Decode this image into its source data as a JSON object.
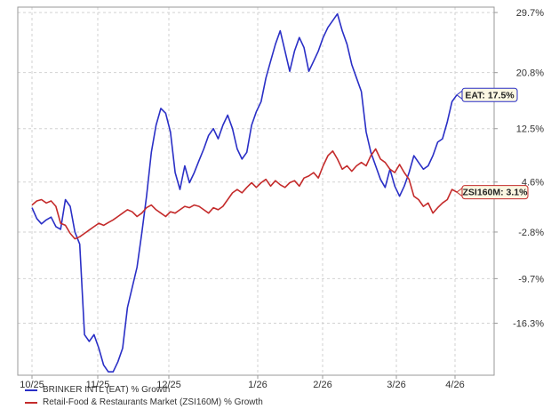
{
  "chart_data": {
    "type": "line",
    "x_ticks": [
      "10/25",
      "11/25",
      "12/25",
      "1/26",
      "2/26",
      "3/26",
      "4/26"
    ],
    "y_ticks": [
      "29.7%",
      "20.8%",
      "12.5%",
      "4.6%",
      "-2.8%",
      "-9.7%",
      "-16.3%"
    ],
    "y_tick_values": [
      29.7,
      20.8,
      12.5,
      4.6,
      -2.8,
      -9.7,
      -16.3
    ],
    "ylim": [
      -24,
      30.5
    ],
    "grid": true,
    "legend_position": "bottom-left",
    "series": [
      {
        "name": "BRINKER INTL (EAT) % Growth",
        "legend_label": "BRINKER INTL (EAT) % Growth",
        "color": "#2a2fc6",
        "end_label": "EAT: 17.5%",
        "points": [
          [
            0,
            0.8
          ],
          [
            1,
            -0.8
          ],
          [
            2,
            -1.6
          ],
          [
            3,
            -1.0
          ],
          [
            4,
            -0.6
          ],
          [
            5,
            -2.0
          ],
          [
            6,
            -2.4
          ],
          [
            7,
            2.0
          ],
          [
            8,
            1.0
          ],
          [
            9,
            -2.8
          ],
          [
            10,
            -4.6
          ],
          [
            11,
            -18.0
          ],
          [
            12,
            -19.0
          ],
          [
            13,
            -18.0
          ],
          [
            14,
            -20.0
          ],
          [
            15,
            -22.5
          ],
          [
            16,
            -23.5
          ],
          [
            17,
            -23.5
          ],
          [
            18,
            -22.0
          ],
          [
            19,
            -20.0
          ],
          [
            20,
            -14.0
          ],
          [
            21,
            -11.0
          ],
          [
            22,
            -8.0
          ],
          [
            23,
            -3.0
          ],
          [
            24,
            2.5
          ],
          [
            25,
            9.0
          ],
          [
            26,
            13.0
          ],
          [
            27,
            15.5
          ],
          [
            28,
            14.8
          ],
          [
            29,
            12.0
          ],
          [
            30,
            6.0
          ],
          [
            31,
            3.5
          ],
          [
            32,
            7.0
          ],
          [
            33,
            4.5
          ],
          [
            34,
            6.0
          ],
          [
            35,
            7.8
          ],
          [
            36,
            9.5
          ],
          [
            37,
            11.5
          ],
          [
            38,
            12.5
          ],
          [
            39,
            11.0
          ],
          [
            40,
            13.0
          ],
          [
            41,
            14.5
          ],
          [
            42,
            12.5
          ],
          [
            43,
            9.5
          ],
          [
            44,
            8.0
          ],
          [
            45,
            9.0
          ],
          [
            46,
            13.0
          ],
          [
            47,
            15.0
          ],
          [
            48,
            16.5
          ],
          [
            49,
            20.0
          ],
          [
            50,
            22.5
          ],
          [
            51,
            25.0
          ],
          [
            52,
            27.0
          ],
          [
            53,
            24.0
          ],
          [
            54,
            21.0
          ],
          [
            55,
            24.0
          ],
          [
            56,
            26.0
          ],
          [
            57,
            24.5
          ],
          [
            58,
            21.0
          ],
          [
            59,
            22.5
          ],
          [
            60,
            24.0
          ],
          [
            61,
            26.0
          ],
          [
            62,
            27.5
          ],
          [
            63,
            28.5
          ],
          [
            64,
            29.5
          ],
          [
            65,
            27.0
          ],
          [
            66,
            25.0
          ],
          [
            67,
            22.0
          ],
          [
            68,
            20.0
          ],
          [
            69,
            18.0
          ],
          [
            70,
            12.0
          ],
          [
            71,
            9.0
          ],
          [
            72,
            7.0
          ],
          [
            73,
            5.0
          ],
          [
            74,
            3.8
          ],
          [
            75,
            6.5
          ],
          [
            76,
            4.0
          ],
          [
            77,
            2.5
          ],
          [
            78,
            4.0
          ],
          [
            79,
            6.0
          ],
          [
            80,
            8.5
          ],
          [
            81,
            7.5
          ],
          [
            82,
            6.5
          ],
          [
            83,
            7.0
          ],
          [
            84,
            8.5
          ],
          [
            85,
            10.5
          ],
          [
            86,
            11.0
          ],
          [
            87,
            13.5
          ],
          [
            88,
            16.5
          ],
          [
            89,
            17.5
          ]
        ]
      },
      {
        "name": "Retail-Food & Restaurants Market (ZSI160M) % Growth",
        "legend_label": "Retail-Food & Restaurants Market (ZSI160M) % Growth",
        "color": "#c42b2b",
        "end_label": "ZSI160M: 3.1%",
        "points": [
          [
            0,
            1.2
          ],
          [
            1,
            1.8
          ],
          [
            2,
            2.0
          ],
          [
            3,
            1.5
          ],
          [
            4,
            1.8
          ],
          [
            5,
            1.0
          ],
          [
            6,
            -1.5
          ],
          [
            7,
            -1.8
          ],
          [
            8,
            -3.0
          ],
          [
            9,
            -3.8
          ],
          [
            10,
            -3.5
          ],
          [
            11,
            -3.0
          ],
          [
            12,
            -2.5
          ],
          [
            13,
            -2.0
          ],
          [
            14,
            -1.5
          ],
          [
            15,
            -1.8
          ],
          [
            16,
            -1.4
          ],
          [
            17,
            -1.0
          ],
          [
            18,
            -0.5
          ],
          [
            19,
            0.0
          ],
          [
            20,
            0.5
          ],
          [
            21,
            0.2
          ],
          [
            22,
            -0.5
          ],
          [
            23,
            0.0
          ],
          [
            24,
            0.8
          ],
          [
            25,
            1.2
          ],
          [
            26,
            0.5
          ],
          [
            27,
            0.0
          ],
          [
            28,
            -0.5
          ],
          [
            29,
            0.2
          ],
          [
            30,
            0.0
          ],
          [
            31,
            0.5
          ],
          [
            32,
            1.0
          ],
          [
            33,
            0.8
          ],
          [
            34,
            1.2
          ],
          [
            35,
            1.0
          ],
          [
            36,
            0.5
          ],
          [
            37,
            0.0
          ],
          [
            38,
            0.8
          ],
          [
            39,
            0.5
          ],
          [
            40,
            1.0
          ],
          [
            41,
            2.0
          ],
          [
            42,
            3.0
          ],
          [
            43,
            3.5
          ],
          [
            44,
            3.0
          ],
          [
            45,
            3.8
          ],
          [
            46,
            4.5
          ],
          [
            47,
            3.8
          ],
          [
            48,
            4.5
          ],
          [
            49,
            5.0
          ],
          [
            50,
            4.0
          ],
          [
            51,
            4.8
          ],
          [
            52,
            4.2
          ],
          [
            53,
            3.8
          ],
          [
            54,
            4.5
          ],
          [
            55,
            4.8
          ],
          [
            56,
            4.0
          ],
          [
            57,
            5.2
          ],
          [
            58,
            5.5
          ],
          [
            59,
            6.0
          ],
          [
            60,
            5.2
          ],
          [
            61,
            7.0
          ],
          [
            62,
            8.5
          ],
          [
            63,
            9.2
          ],
          [
            64,
            8.0
          ],
          [
            65,
            6.5
          ],
          [
            66,
            7.0
          ],
          [
            67,
            6.2
          ],
          [
            68,
            7.0
          ],
          [
            69,
            7.5
          ],
          [
            70,
            7.0
          ],
          [
            71,
            8.5
          ],
          [
            72,
            9.5
          ],
          [
            73,
            8.0
          ],
          [
            74,
            7.5
          ],
          [
            75,
            6.5
          ],
          [
            76,
            6.0
          ],
          [
            77,
            7.2
          ],
          [
            78,
            6.0
          ],
          [
            79,
            5.0
          ],
          [
            80,
            2.5
          ],
          [
            81,
            2.0
          ],
          [
            82,
            1.0
          ],
          [
            83,
            1.5
          ],
          [
            84,
            0.0
          ],
          [
            85,
            0.8
          ],
          [
            86,
            1.5
          ],
          [
            87,
            2.0
          ],
          [
            88,
            3.5
          ],
          [
            89,
            3.1
          ]
        ]
      }
    ]
  }
}
